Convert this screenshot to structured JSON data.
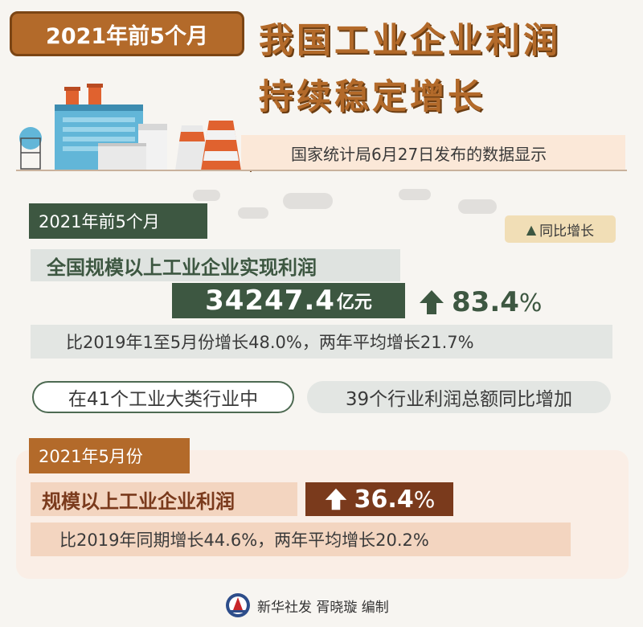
{
  "header": {
    "date_badge": "2021年前5个月",
    "title_line1": "我国工业企业利润",
    "title_line2": "持续稳定增长",
    "source": "国家统计局6月27日发布的数据显示"
  },
  "section1": {
    "tag": "2021年前5个月",
    "legend": "同比增长",
    "headline": "全国规模以上工业企业实现利润",
    "value": "34247.4",
    "unit": "亿元",
    "growth_num": "83.4",
    "growth_pct": "%",
    "comparison": "比2019年1至5月份增长48.0%，两年平均增长21.7%",
    "industry_left": "在41个工业大类行业中",
    "industry_right": "39个行业利润总额同比增加"
  },
  "section2": {
    "tag": "2021年5月份",
    "headline": "规模以上工业企业利润",
    "growth_num": "36.4",
    "growth_pct": "%",
    "comparison": "比2019年同期增长44.6%，两年平均增长20.2%"
  },
  "footer": {
    "credit": "新华社发 胥晓璇 编制"
  },
  "colors": {
    "brown": "#b36a2a",
    "dark_green": "#3d5741",
    "dark_brown": "#7a3a1c",
    "background": "#f7f5f1"
  },
  "icons": [
    "up-arrow-icon",
    "factory-illustration",
    "xinhua-logo-icon",
    "cloud-icon"
  ]
}
